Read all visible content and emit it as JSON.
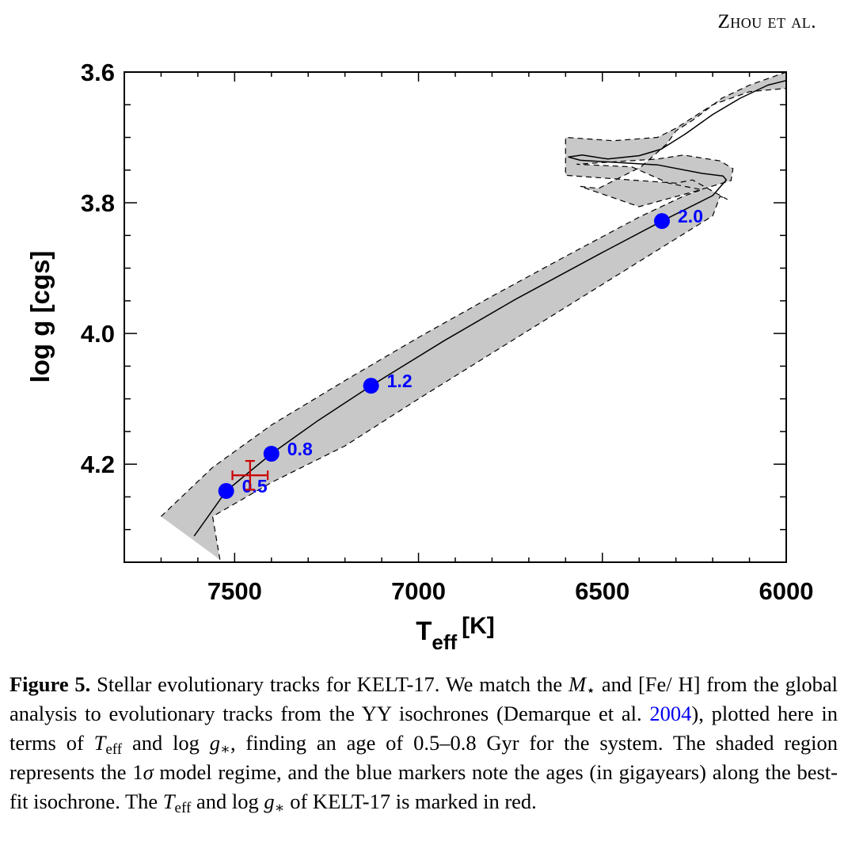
{
  "header": {
    "running_head": "Zhou et al."
  },
  "chart_data": {
    "type": "line",
    "title": "",
    "xlabel": "T",
    "xlabel_subscript": "eff",
    "xlabel_unit": "[K]",
    "ylabel": "log g [cgs]",
    "xlim": [
      7800,
      6000
    ],
    "ylim": [
      4.35,
      3.6
    ],
    "x_inverted": true,
    "y_inverted": true,
    "x_major_ticks": [
      7500,
      7000,
      6500,
      6000
    ],
    "x_tick_labels": [
      "7500",
      "7000",
      "6500",
      "6000"
    ],
    "x_minor_step": 100,
    "y_major_ticks": [
      3.6,
      3.8,
      4.0,
      4.2
    ],
    "y_tick_labels": [
      "3.6",
      "3.8",
      "4.0",
      "4.2"
    ],
    "y_minor_step": 0.05,
    "grid": false,
    "colors": {
      "band_fill": "#c8c8c8",
      "track": "#000000",
      "age_marker": "#0000ff",
      "target": "#cc0000"
    },
    "best_fit_track": {
      "name": "best-fit isochrone",
      "points": [
        [
          7610,
          4.31
        ],
        [
          7523,
          4.241
        ],
        [
          7400,
          4.184
        ],
        [
          7275,
          4.134
        ],
        [
          7129,
          4.08
        ],
        [
          6930,
          4.011
        ],
        [
          6737,
          3.948
        ],
        [
          6500,
          3.876
        ],
        [
          6338,
          3.828
        ],
        [
          6200,
          3.789
        ],
        [
          6163,
          3.765
        ],
        [
          6172,
          3.759
        ],
        [
          6230,
          3.755
        ],
        [
          6350,
          3.742
        ],
        [
          6560,
          3.735
        ],
        [
          6592,
          3.73
        ],
        [
          6555,
          3.727
        ],
        [
          6485,
          3.733
        ],
        [
          6400,
          3.728
        ],
        [
          6340,
          3.718
        ],
        [
          6275,
          3.695
        ],
        [
          6200,
          3.665
        ],
        [
          6125,
          3.64
        ],
        [
          6050,
          3.62
        ],
        [
          6000,
          3.613
        ]
      ]
    },
    "sigma_band": {
      "name": "1-sigma model region",
      "upper_edge": [
        [
          7700,
          4.28
        ],
        [
          7560,
          4.205
        ],
        [
          7400,
          4.14
        ],
        [
          7200,
          4.072
        ],
        [
          7000,
          4.006
        ],
        [
          6800,
          3.943
        ],
        [
          6600,
          3.882
        ],
        [
          6400,
          3.822
        ],
        [
          6280,
          3.79
        ],
        [
          6230,
          3.78
        ],
        [
          6320,
          3.77
        ],
        [
          6420,
          3.745
        ],
        [
          6570,
          3.741
        ],
        [
          6350,
          3.733
        ],
        [
          6280,
          3.727
        ],
        [
          6180,
          3.736
        ],
        [
          6145,
          3.748
        ],
        [
          6150,
          3.766
        ],
        [
          6245,
          3.782
        ],
        [
          6400,
          3.806
        ],
        [
          6560,
          3.775
        ],
        [
          6510,
          3.778
        ],
        [
          6395,
          3.745
        ],
        [
          6325,
          3.71
        ],
        [
          6300,
          3.69
        ],
        [
          6250,
          3.672
        ],
        [
          6175,
          3.64
        ],
        [
          6100,
          3.62
        ],
        [
          6000,
          3.6
        ]
      ],
      "lower_edge": [
        [
          7540,
          4.346
        ],
        [
          7560,
          4.28
        ],
        [
          7400,
          4.228
        ],
        [
          7200,
          4.172
        ],
        [
          7000,
          4.1
        ],
        [
          6800,
          4.03
        ],
        [
          6600,
          3.96
        ],
        [
          6400,
          3.89
        ],
        [
          6200,
          3.82
        ],
        [
          6180,
          3.79
        ],
        [
          6160,
          3.795
        ],
        [
          6255,
          3.765
        ],
        [
          6300,
          3.77
        ],
        [
          6600,
          3.758
        ],
        [
          6600,
          3.7
        ],
        [
          6470,
          3.705
        ],
        [
          6350,
          3.7
        ],
        [
          6300,
          3.686
        ],
        [
          6200,
          3.65
        ],
        [
          6100,
          3.63
        ],
        [
          6000,
          3.625
        ]
      ]
    },
    "age_markers": [
      {
        "label": "0.5",
        "age_gyr": 0.5,
        "teff": 7523,
        "logg": 4.241
      },
      {
        "label": "0.8",
        "age_gyr": 0.8,
        "teff": 7400,
        "logg": 4.184
      },
      {
        "label": "1.2",
        "age_gyr": 1.2,
        "teff": 7129,
        "logg": 4.08
      },
      {
        "label": "2.0",
        "age_gyr": 2.0,
        "teff": 6338,
        "logg": 3.828
      }
    ],
    "target": {
      "name": "KELT-17",
      "teff": 7458,
      "teff_err": 48,
      "logg": 4.217,
      "logg_err": 0.022
    }
  },
  "caption": {
    "label": "Figure 5.",
    "t1": " Stellar evolutionary tracks for KELT-17. We match the ",
    "m_star": "M",
    "m_star_sub": "⋆",
    "t2": " and [Fe/ H] from the global analysis to evolutionary tracks from the YY isochrones (Demarque et al. ",
    "ref_year": "2004",
    "t3": "), plotted here in terms of ",
    "teff": "T",
    "teff_sub": "eff",
    "t4": " and log ",
    "g": "g",
    "g_sub": "∗",
    "t5": ", finding an age of 0.5–0.8 Gyr for the system. The shaded region represents the 1",
    "sigma": "σ",
    "t6": " model regime, and the blue markers note the ages (in gigayears) along the best-fit isochrone. The ",
    "teff2": "T",
    "teff2_sub": "eff",
    "t7": " and log ",
    "g2": "g",
    "g2_sub": "∗",
    "t8": " of KELT-17 is marked in red."
  }
}
